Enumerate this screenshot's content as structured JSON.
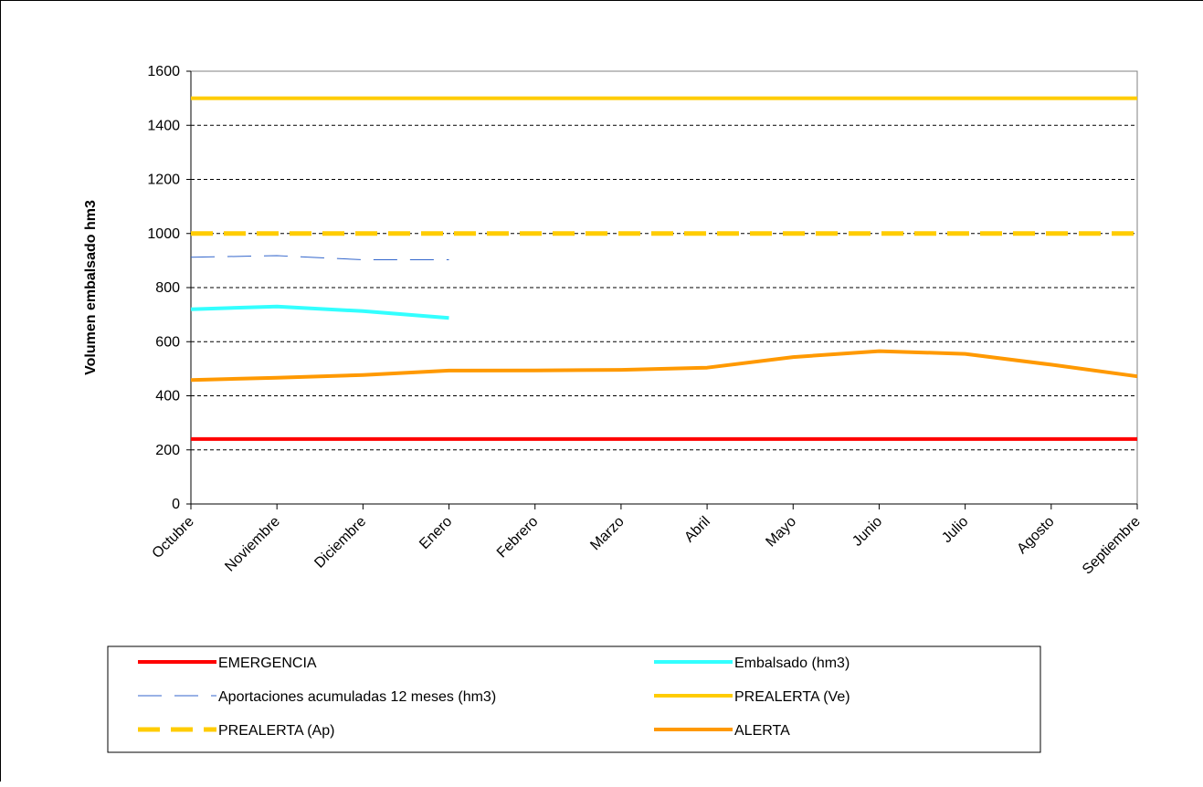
{
  "chart_data": {
    "type": "line",
    "title": "",
    "xlabel": "",
    "ylabel": "Volumen embalsado hm3",
    "ylim": [
      0,
      1600
    ],
    "yticks": [
      0,
      200,
      400,
      600,
      800,
      1000,
      1200,
      1400,
      1600
    ],
    "grid": true,
    "legend_position": "bottom",
    "categories": [
      "Octubre",
      "Noviembre",
      "Diciembre",
      "Enero",
      "Febrero",
      "Marzo",
      "Abril",
      "Mayo",
      "Junio",
      "Julio",
      "Agosto",
      "Septiembre"
    ],
    "series": [
      {
        "name": "EMERGENCIA",
        "color": "#ff0000",
        "style": "solid",
        "values": [
          240,
          240,
          240,
          240,
          240,
          240,
          240,
          240,
          240,
          240,
          240,
          240
        ]
      },
      {
        "name": "Embalsado (hm3)",
        "color": "#33ffff",
        "style": "solid",
        "values": [
          720,
          730,
          713,
          688,
          null,
          null,
          null,
          null,
          null,
          null,
          null,
          null
        ]
      },
      {
        "name": "Aportaciones acumuladas 12 meses (hm3)",
        "color": "#3366cc",
        "style": "dashed-thin",
        "values": [
          912,
          918,
          903,
          903,
          null,
          null,
          null,
          null,
          null,
          null,
          null,
          null
        ]
      },
      {
        "name": "PREALERTA (Ve)",
        "color": "#ffcc00",
        "style": "solid",
        "values": [
          1500,
          1500,
          1500,
          1500,
          1500,
          1500,
          1500,
          1500,
          1500,
          1500,
          1500,
          1500
        ]
      },
      {
        "name": "PREALERTA (Ap)",
        "color": "#ffcc00",
        "style": "dashed-thick",
        "values": [
          1000,
          1000,
          1000,
          1000,
          1000,
          1000,
          1000,
          1000,
          1000,
          1000,
          1000,
          1000
        ]
      },
      {
        "name": "ALERTA",
        "color": "#ff9900",
        "style": "solid",
        "values": [
          458,
          467,
          477,
          493,
          494,
          496,
          504,
          543,
          565,
          555,
          515,
          472
        ]
      }
    ]
  }
}
